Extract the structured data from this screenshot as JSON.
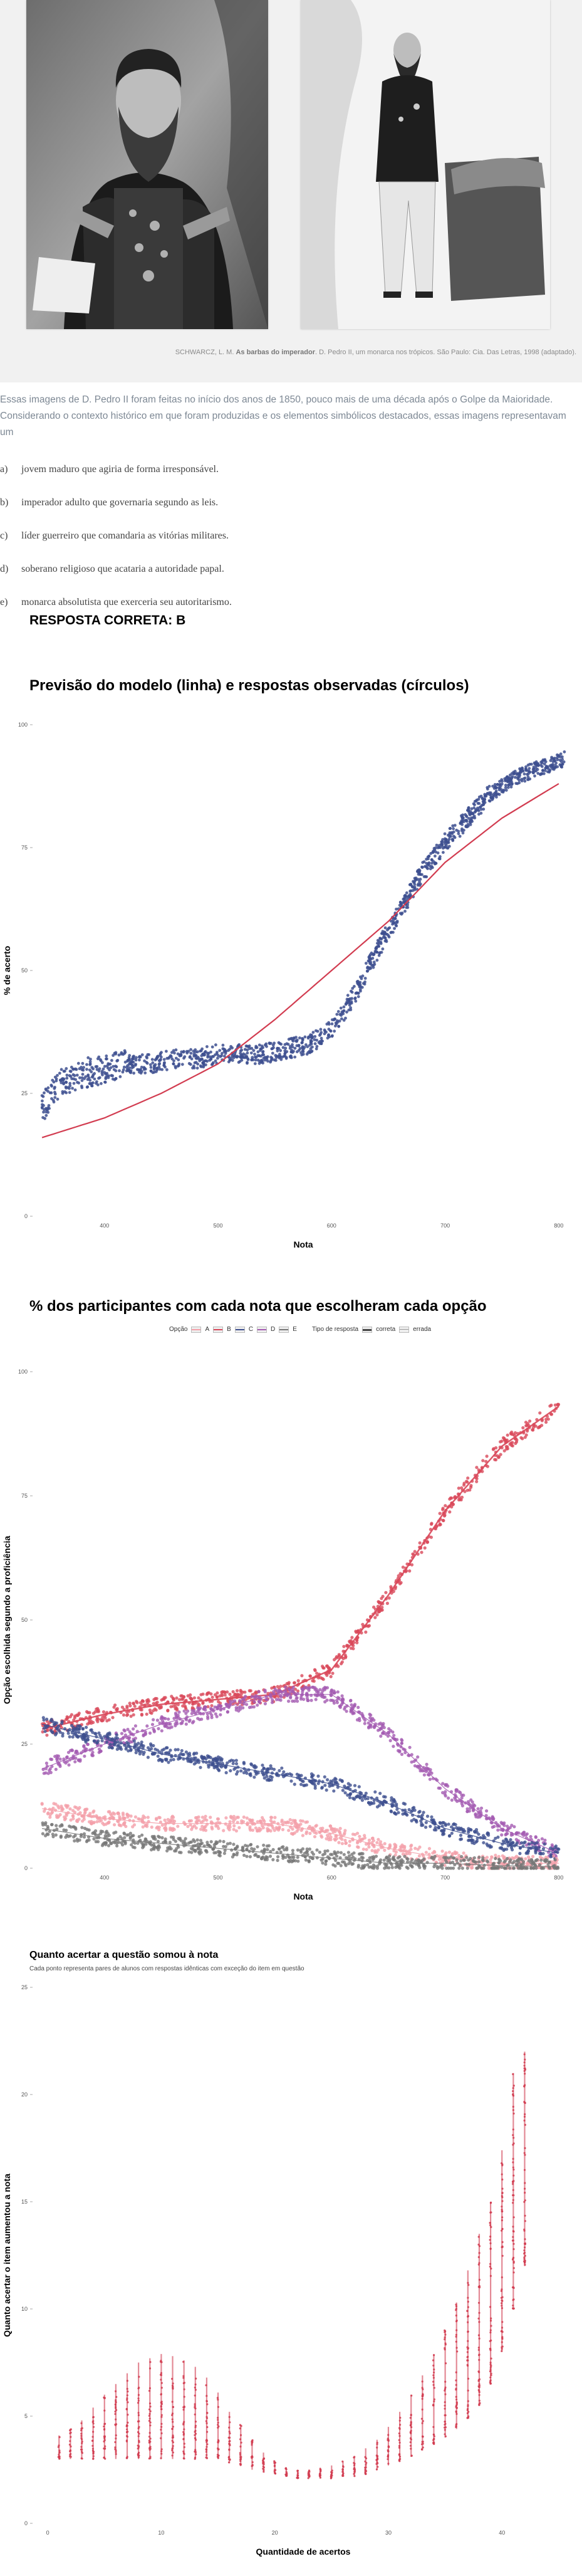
{
  "credit": {
    "pre": "SCHWARCZ, L. M. ",
    "bold": "As barbas do imperador",
    "post": ". D. Pedro II, um monarca nos trópicos. São Paulo: Cia. Das Letras, 1998 (adaptado)."
  },
  "question": {
    "intro": "Essas imagens de D. Pedro II foram feitas no início dos anos de 1850, pouco mais de uma década após o Golpe da Maioridade. Considerando o contexto histórico em que foram produzidas e os elementos simbólicos destacados, essas imagens representavam um",
    "options": [
      {
        "letter": "a)",
        "text": "jovem maduro que agiria de forma irresponsável."
      },
      {
        "letter": "b)",
        "text": "imperador adulto que governaria segundo as leis."
      },
      {
        "letter": "c)",
        "text": "líder guerreiro que comandaria as vitórias militares."
      },
      {
        "letter": "d)",
        "text": "soberano religioso que acataria a autoridade papal."
      },
      {
        "letter": "e)",
        "text": "monarca absolutista que exerceria seu autoritarismo."
      }
    ],
    "answer": "RESPOSTA CORRETA: B"
  },
  "chart_data": [
    {
      "type": "scatter",
      "title": "Previsão do modelo (linha) e respostas observadas (círculos)",
      "xlabel": "Nota",
      "ylabel": "% de acerto",
      "xticks": [
        400,
        500,
        600,
        700,
        800
      ],
      "yticks": [
        0,
        25,
        50,
        75,
        100
      ],
      "xlim": [
        340,
        810
      ],
      "ylim": [
        0,
        100
      ],
      "colors": {
        "points": "#3d4f8f",
        "line": "#d23c50"
      },
      "series": [
        {
          "kind": "points",
          "x": [
            345,
            360,
            380,
            400,
            420,
            440,
            460,
            480,
            500,
            520,
            540,
            560,
            580,
            600,
            620,
            640,
            660,
            680,
            700,
            720,
            740,
            760,
            780,
            795,
            805
          ],
          "y": [
            22,
            27,
            29,
            30,
            31,
            31,
            32,
            32,
            33,
            33,
            33,
            34,
            35,
            38,
            45,
            54,
            62,
            70,
            76,
            81,
            86,
            89,
            91,
            92,
            93
          ]
        },
        {
          "kind": "line",
          "x": [
            345,
            400,
            450,
            500,
            550,
            600,
            650,
            700,
            750,
            800
          ],
          "y": [
            16,
            20,
            25,
            31,
            40,
            50,
            60,
            72,
            81,
            88
          ]
        }
      ]
    },
    {
      "type": "scatter",
      "title": "% dos participantes com cada nota que escolheram cada opção",
      "xlabel": "Nota",
      "ylabel": "Opção escolhida segundo a proficiência",
      "xticks": [
        400,
        500,
        600,
        700,
        800
      ],
      "yticks": [
        0,
        25,
        50,
        75,
        100
      ],
      "xlim": [
        340,
        810
      ],
      "ylim": [
        0,
        100
      ],
      "legend": {
        "option_label": "Opção",
        "options": [
          "A",
          "B",
          "C",
          "D",
          "E"
        ],
        "type_label": "Tipo de resposta",
        "types": [
          "correta",
          "errada"
        ]
      },
      "series": [
        {
          "name": "B",
          "color": "#d9485a",
          "x": [
            345,
            400,
            450,
            500,
            550,
            600,
            650,
            700,
            750,
            800
          ],
          "y": [
            28,
            31,
            33,
            34,
            35,
            40,
            55,
            72,
            85,
            93
          ]
        },
        {
          "name": "D",
          "color": "#a45bb2",
          "x": [
            345,
            400,
            450,
            500,
            550,
            600,
            650,
            700,
            750,
            800
          ],
          "y": [
            20,
            25,
            29,
            32,
            35,
            35,
            27,
            16,
            8,
            3
          ]
        },
        {
          "name": "C",
          "color": "#3d4f8f",
          "x": [
            345,
            400,
            450,
            500,
            550,
            600,
            650,
            700,
            750,
            800
          ],
          "y": [
            29,
            26,
            23,
            21,
            19,
            17,
            13,
            8,
            5,
            3
          ]
        },
        {
          "name": "A",
          "color": "#f4a0aa",
          "x": [
            345,
            400,
            450,
            500,
            550,
            600,
            650,
            700,
            750,
            800
          ],
          "y": [
            12,
            10,
            9,
            9,
            9,
            7,
            4,
            2,
            1,
            1
          ]
        },
        {
          "name": "E",
          "color": "#777777",
          "x": [
            345,
            400,
            450,
            500,
            550,
            600,
            650,
            700,
            750,
            800
          ],
          "y": [
            8,
            6,
            5,
            4,
            3,
            2,
            1,
            1,
            0.5,
            0.3
          ]
        }
      ]
    },
    {
      "type": "scatter",
      "title": "Quanto acertar a questão somou à nota",
      "subtitle": "Cada ponto representa pares de alunos com respostas idênticas com exceção do item em questão",
      "xlabel": "Quantidade de acertos",
      "ylabel": "Quanto acertar o item aumentou a nota",
      "xticks": [
        0,
        10,
        20,
        30,
        40
      ],
      "yticks": [
        0,
        5,
        10,
        15,
        20,
        25
      ],
      "xlim": [
        -1,
        46
      ],
      "ylim": [
        0,
        25
      ],
      "color": "#d23c50",
      "series": [
        {
          "kind": "ranges",
          "x": [
            1,
            2,
            3,
            4,
            5,
            6,
            7,
            8,
            9,
            10,
            11,
            12,
            13,
            14,
            15,
            16,
            17,
            18,
            19,
            20,
            21,
            22,
            23,
            24,
            25,
            26,
            27,
            28,
            29,
            30,
            31,
            32,
            33,
            34,
            35,
            36,
            37,
            38,
            39,
            40,
            41,
            42
          ],
          "low": [
            3,
            3,
            3,
            3,
            3,
            3,
            3,
            3,
            3,
            3,
            3,
            3,
            3,
            3,
            3,
            2.8,
            2.7,
            2.5,
            2.4,
            2.3,
            2.2,
            2.1,
            2.1,
            2.1,
            2.1,
            2.2,
            2.2,
            2.3,
            2.5,
            2.7,
            2.9,
            3.1,
            3.4,
            3.7,
            4,
            4.4,
            4.9,
            5.5,
            6.5,
            8,
            10,
            12
          ],
          "high": [
            4.1,
            4.4,
            4.8,
            5.4,
            6,
            6.5,
            7,
            7.5,
            7.7,
            7.9,
            7.8,
            7.6,
            7.3,
            6.8,
            6.1,
            5.2,
            4.6,
            3.9,
            3.3,
            2.9,
            2.6,
            2.5,
            2.5,
            2.6,
            2.7,
            2.9,
            3.1,
            3.5,
            3.9,
            4.5,
            5.2,
            6,
            6.9,
            7.9,
            9,
            10.3,
            11.8,
            13.5,
            15,
            17.4,
            21,
            22
          ]
        }
      ]
    }
  ]
}
